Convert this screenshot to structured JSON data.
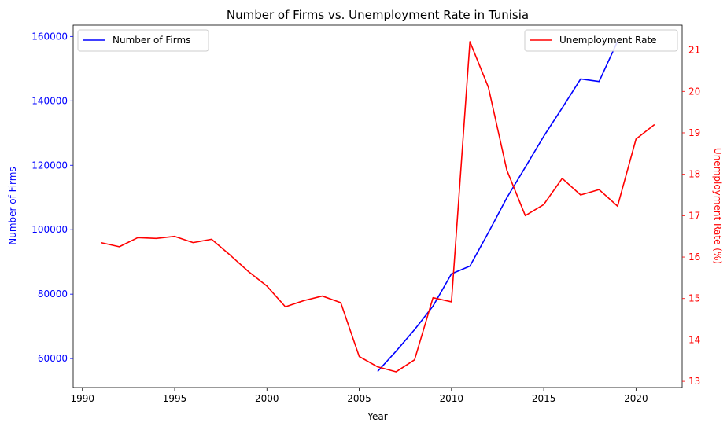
{
  "chart_data": {
    "type": "line",
    "title": "Number of Firms vs. Unemployment Rate in Tunisia",
    "xlabel": "Year",
    "ylabel_left": "Number of Firms",
    "ylabel_right": "Unemployment Rate (%)",
    "xlim": [
      1989.5,
      2022.5
    ],
    "ylim_left": [
      51000,
      163500
    ],
    "ylim_right": [
      12.85,
      21.6
    ],
    "x_ticks": [
      1990,
      1995,
      2000,
      2005,
      2010,
      2015,
      2020
    ],
    "y_left_ticks": [
      60000,
      80000,
      100000,
      120000,
      140000,
      160000
    ],
    "y_right_ticks": [
      13,
      14,
      15,
      16,
      17,
      18,
      19,
      20,
      21
    ],
    "grid": false,
    "colors": {
      "firms": "#0000ff",
      "unemployment": "#ff0000"
    },
    "series": [
      {
        "name": "Number of Firms",
        "axis": "left",
        "color": "#0000ff",
        "x": [
          2006,
          2007,
          2008,
          2009,
          2010,
          2011,
          2012,
          2013,
          2014,
          2015,
          2016,
          2017,
          2018,
          2019
        ],
        "values": [
          56000,
          62300,
          69000,
          76300,
          86300,
          88700,
          99100,
          109900,
          119400,
          129000,
          137800,
          146800,
          146000,
          158500
        ]
      },
      {
        "name": "Unemployment Rate",
        "axis": "right",
        "color": "#ff0000",
        "x": [
          1991,
          1992,
          1993,
          1994,
          1995,
          1996,
          1997,
          1998,
          1999,
          2000,
          2001,
          2002,
          2003,
          2004,
          2005,
          2006,
          2007,
          2008,
          2009,
          2010,
          2011,
          2012,
          2013,
          2014,
          2015,
          2016,
          2017,
          2018,
          2019,
          2020,
          2021
        ],
        "values": [
          16.35,
          16.25,
          16.47,
          16.45,
          16.5,
          16.35,
          16.43,
          16.05,
          15.65,
          15.3,
          14.8,
          14.95,
          15.06,
          14.9,
          13.6,
          13.35,
          13.23,
          13.52,
          15.02,
          14.92,
          21.2,
          20.1,
          18.1,
          17.0,
          17.27,
          17.9,
          17.5,
          17.63,
          17.23,
          18.85,
          19.2
        ]
      }
    ],
    "legends": [
      {
        "placement": "upper-left",
        "entries": [
          "Number of Firms"
        ]
      },
      {
        "placement": "upper-right",
        "entries": [
          "Unemployment Rate"
        ]
      }
    ]
  }
}
